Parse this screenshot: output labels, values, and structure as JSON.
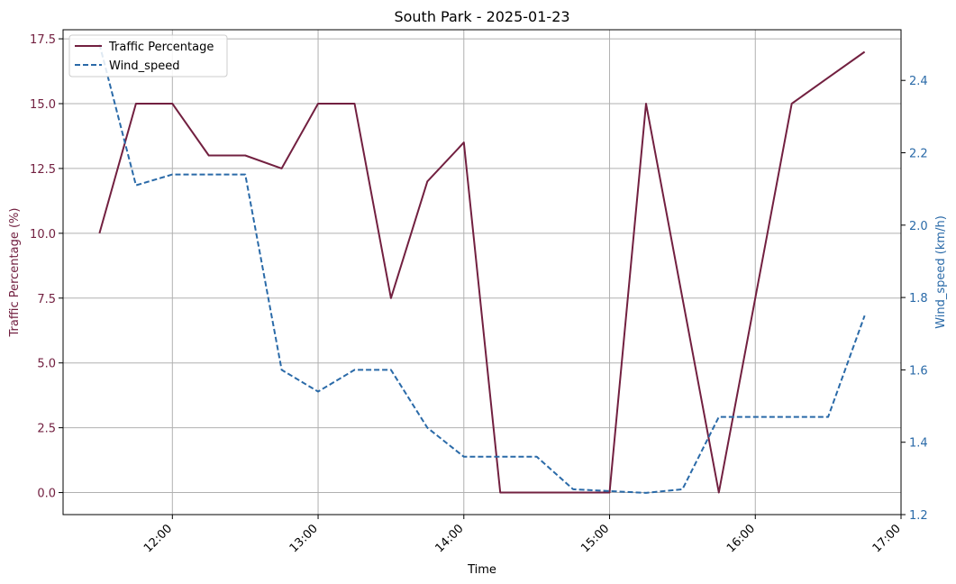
{
  "chart_data": {
    "type": "line",
    "title": "South Park - 2025-01-23",
    "xlabel": "Time",
    "ylabel_left": "Traffic Percentage (%)",
    "ylabel_right": "Wind_speed (km/h)",
    "x": [
      "11:30",
      "11:45",
      "12:00",
      "12:15",
      "12:30",
      "12:45",
      "13:00",
      "13:15",
      "13:30",
      "13:45",
      "14:00",
      "14:15",
      "14:30",
      "14:45",
      "15:00",
      "15:15",
      "15:30",
      "15:45",
      "16:00",
      "16:15",
      "16:30",
      "16:45"
    ],
    "x_ticks": [
      "12:00",
      "13:00",
      "14:00",
      "15:00",
      "16:00",
      "17:00"
    ],
    "xlim": [
      "11:15",
      "17:00"
    ],
    "y_left_ticks": [
      "0.0",
      "2.5",
      "5.0",
      "7.5",
      "10.0",
      "12.5",
      "15.0",
      "17.5"
    ],
    "ylim_left": [
      -0.85,
      17.85
    ],
    "y_right_ticks": [
      "1.2",
      "1.4",
      "1.6",
      "1.8",
      "2.0",
      "2.2",
      "2.4"
    ],
    "ylim_right": [
      1.2,
      2.54
    ],
    "series": [
      {
        "name": "Traffic Percentage",
        "axis": "left",
        "color": "#722040",
        "style": "solid",
        "values": [
          10,
          15,
          15,
          13,
          13,
          12.5,
          15,
          15,
          7.5,
          12,
          13.5,
          0,
          0,
          0,
          0,
          15,
          7.5,
          0,
          null,
          15,
          16,
          17
        ],
        "x": [
          "11:30",
          "11:45",
          "12:00",
          "12:15",
          "12:30",
          "12:45",
          "13:00",
          "13:15",
          "13:30",
          "13:45",
          "14:00",
          "14:15",
          "14:30",
          "14:45",
          "15:00",
          "15:15",
          "15:30",
          "15:45",
          "16:00",
          "16:15",
          "16:30",
          "16:45"
        ]
      },
      {
        "name": "Wind_speed",
        "axis": "right",
        "color": "#2a6aa8",
        "style": "dashed",
        "values": [
          2.5,
          2.11,
          2.14,
          2.14,
          2.14,
          1.6,
          1.54,
          1.6,
          1.6,
          1.44,
          1.36,
          1.36,
          1.36,
          1.27,
          1.265,
          1.26,
          1.27,
          1.47,
          1.47,
          1.47,
          1.47,
          1.75
        ]
      }
    ],
    "grid": true,
    "legend": "top-left"
  }
}
